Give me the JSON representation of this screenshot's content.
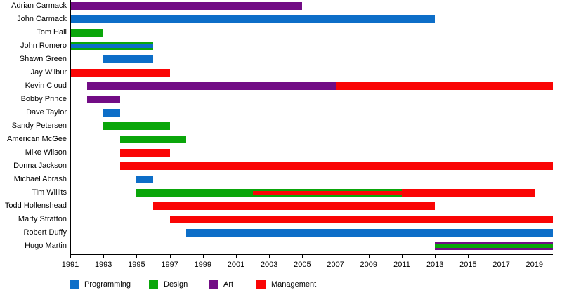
{
  "legend": {
    "items": [
      {
        "label": "Programming",
        "color": "#0d6ec8"
      },
      {
        "label": "Design",
        "color": "#0aa60a"
      },
      {
        "label": "Art",
        "color": "#720c85"
      },
      {
        "label": "Management",
        "color": "#fa0505"
      }
    ]
  },
  "chart_data": {
    "type": "gantt",
    "title": "",
    "xlabel": "",
    "ylabel": "",
    "x_axis": {
      "min": 1991,
      "max": 2020.1,
      "tick_years": [
        1991,
        1993,
        1995,
        1997,
        1999,
        2001,
        2003,
        2005,
        2007,
        2009,
        2011,
        2013,
        2015,
        2017,
        2019
      ]
    },
    "role_colors": {
      "Programming": "#0d6ec8",
      "Design": "#0aa60a",
      "Art": "#720c85",
      "Management": "#fa0505"
    },
    "people": [
      {
        "name": "Adrian Carmack",
        "bars": [
          {
            "role": "Art",
            "start": 1991,
            "end": 2005,
            "layer": "full"
          }
        ]
      },
      {
        "name": "John Carmack",
        "bars": [
          {
            "role": "Programming",
            "start": 1991,
            "end": 2013,
            "layer": "full"
          }
        ]
      },
      {
        "name": "Tom Hall",
        "bars": [
          {
            "role": "Design",
            "start": 1991,
            "end": 1993,
            "layer": "full"
          }
        ]
      },
      {
        "name": "John Romero",
        "bars": [
          {
            "role": "Design",
            "start": 1991,
            "end": 1996,
            "layer": "full"
          },
          {
            "role": "Programming",
            "start": 1991,
            "end": 1996,
            "layer": "stripe"
          }
        ]
      },
      {
        "name": "Shawn Green",
        "bars": [
          {
            "role": "Programming",
            "start": 1993,
            "end": 1996,
            "layer": "full"
          }
        ]
      },
      {
        "name": "Jay Wilbur",
        "bars": [
          {
            "role": "Management",
            "start": 1991,
            "end": 1997,
            "layer": "full"
          }
        ]
      },
      {
        "name": "Kevin Cloud",
        "bars": [
          {
            "role": "Art",
            "start": 1992,
            "end": 2007,
            "layer": "full"
          },
          {
            "role": "Management",
            "start": 2007,
            "end": 2020.1,
            "layer": "full"
          }
        ]
      },
      {
        "name": "Bobby Prince",
        "bars": [
          {
            "role": "Art",
            "start": 1992,
            "end": 1994,
            "layer": "full"
          }
        ]
      },
      {
        "name": "Dave Taylor",
        "bars": [
          {
            "role": "Programming",
            "start": 1993,
            "end": 1994,
            "layer": "full"
          }
        ]
      },
      {
        "name": "Sandy Petersen",
        "bars": [
          {
            "role": "Design",
            "start": 1993,
            "end": 1997,
            "layer": "full"
          }
        ]
      },
      {
        "name": "American McGee",
        "bars": [
          {
            "role": "Design",
            "start": 1994,
            "end": 1998,
            "layer": "full"
          }
        ]
      },
      {
        "name": "Mike Wilson",
        "bars": [
          {
            "role": "Management",
            "start": 1994,
            "end": 1997,
            "layer": "full"
          }
        ]
      },
      {
        "name": "Donna Jackson",
        "bars": [
          {
            "role": "Management",
            "start": 1994,
            "end": 2020.1,
            "layer": "full"
          }
        ]
      },
      {
        "name": "Michael Abrash",
        "bars": [
          {
            "role": "Programming",
            "start": 1995,
            "end": 1996,
            "layer": "full"
          }
        ]
      },
      {
        "name": "Tim Willits",
        "bars": [
          {
            "role": "Design",
            "start": 1995,
            "end": 2011,
            "layer": "full"
          },
          {
            "role": "Management",
            "start": 2011,
            "end": 2019,
            "layer": "full"
          },
          {
            "role": "Management",
            "start": 2002,
            "end": 2011,
            "layer": "stripe"
          }
        ]
      },
      {
        "name": "Todd Hollenshead",
        "bars": [
          {
            "role": "Management",
            "start": 1996,
            "end": 2013,
            "layer": "full"
          }
        ]
      },
      {
        "name": "Marty Stratton",
        "bars": [
          {
            "role": "Management",
            "start": 1997,
            "end": 2020.1,
            "layer": "full"
          }
        ]
      },
      {
        "name": "Robert Duffy",
        "bars": [
          {
            "role": "Programming",
            "start": 1998,
            "end": 2020.1,
            "layer": "full"
          }
        ]
      },
      {
        "name": "Hugo Martin",
        "bars": [
          {
            "role": "Art",
            "start": 2013,
            "end": 2020.1,
            "layer": "full"
          },
          {
            "role": "Design",
            "start": 2013,
            "end": 2020.1,
            "layer": "stripe"
          }
        ]
      }
    ]
  }
}
